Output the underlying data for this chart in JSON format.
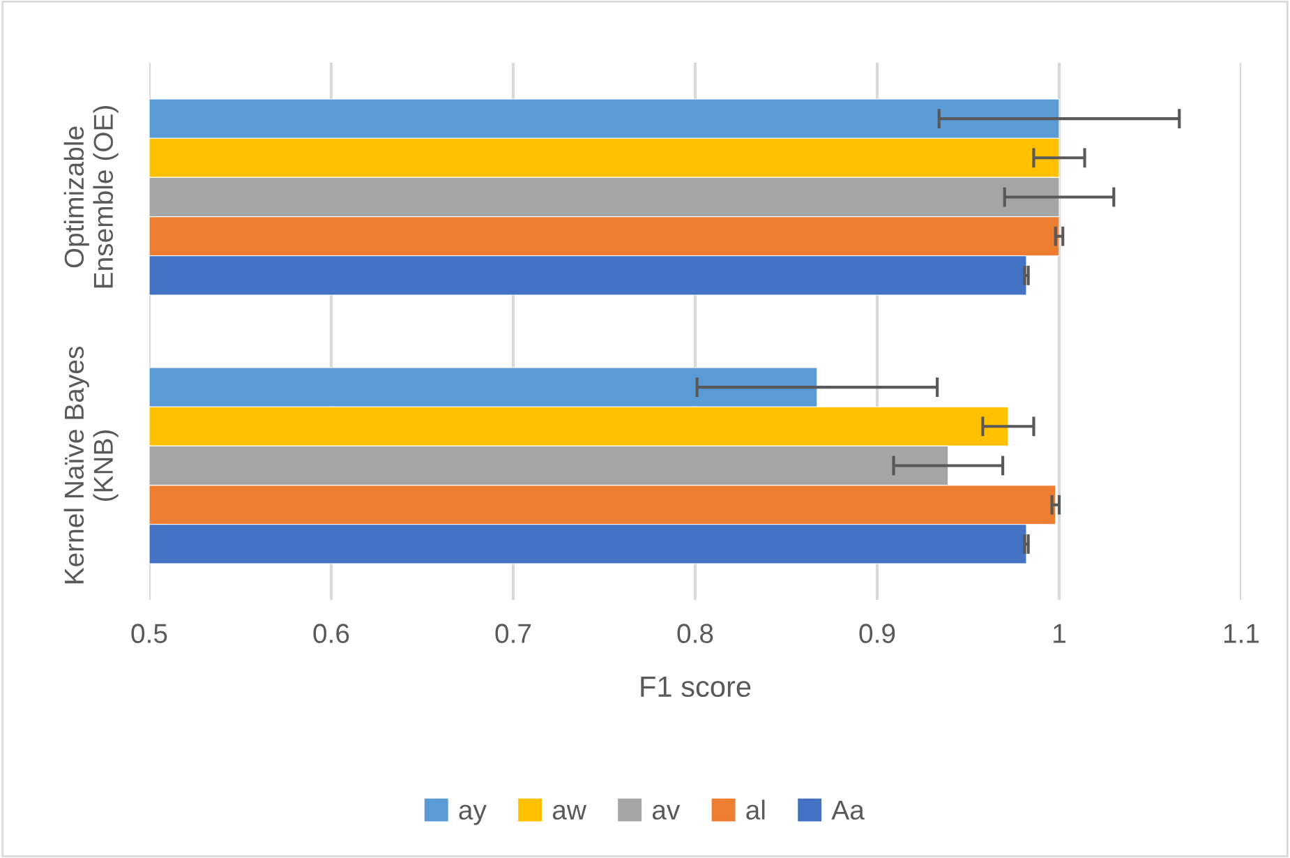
{
  "chart_data": {
    "type": "bar",
    "orientation": "horizontal",
    "xlabel": "F1 score",
    "categories": [
      "Optimizable\nEnsemble (OE)",
      "Kernel Naïve Bayes\n(KNB)"
    ],
    "series": [
      {
        "name": "ay",
        "color": "#5b9bd5",
        "values": [
          1.0,
          0.867
        ],
        "errors": [
          0.066,
          0.066
        ]
      },
      {
        "name": "aw",
        "color": "#ffc000",
        "values": [
          1.0,
          0.972
        ],
        "errors": [
          0.014,
          0.014
        ]
      },
      {
        "name": "av",
        "color": "#a5a5a5",
        "values": [
          1.0,
          0.939
        ],
        "errors": [
          0.03,
          0.03
        ]
      },
      {
        "name": "al",
        "color": "#ed7d31",
        "values": [
          1.0,
          0.998
        ],
        "errors": [
          0.002,
          0.002
        ]
      },
      {
        "name": "Aa",
        "color": "#4472c4",
        "values": [
          0.982,
          0.982
        ],
        "errors": [
          0.001,
          0.001
        ]
      }
    ],
    "xlim": [
      0.5,
      1.1
    ],
    "xticks": [
      0.5,
      0.6,
      0.7,
      0.8,
      0.9,
      1,
      1.1
    ],
    "grid": "x",
    "legend": "bottom"
  }
}
